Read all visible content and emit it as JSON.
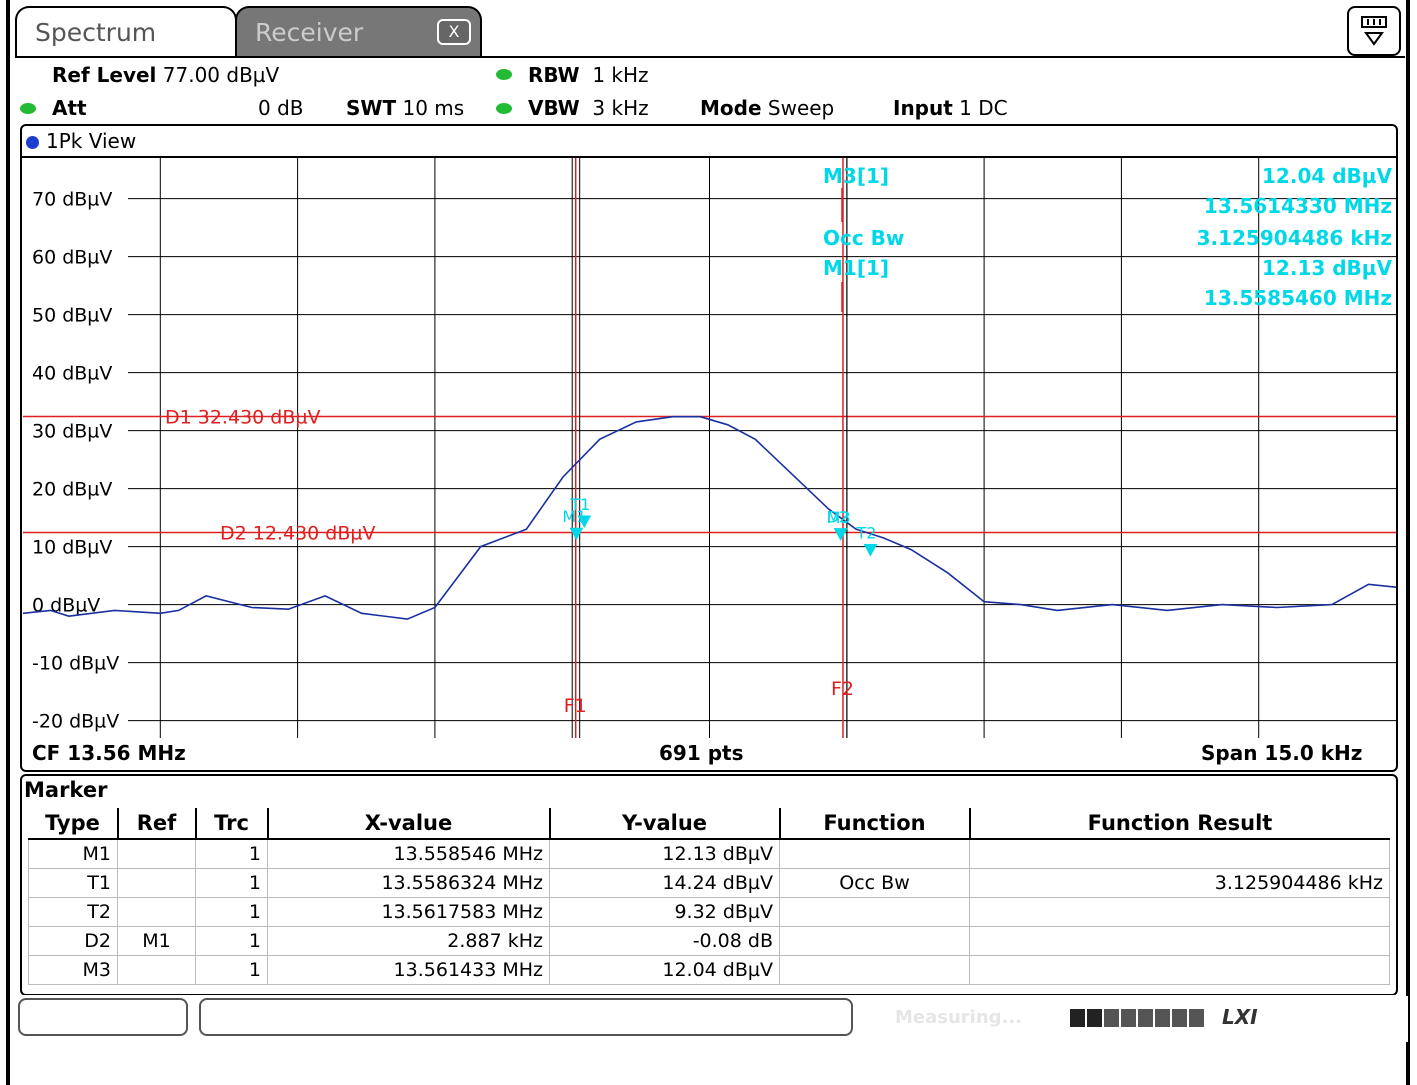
{
  "tabs": [
    {
      "label": "Spectrum",
      "active": true
    },
    {
      "label": "Receiver",
      "active": false
    }
  ],
  "tab_close_label": "X",
  "header": {
    "ref_level_label": "Ref Level",
    "ref_level_value": "77.00 dBµV",
    "att_label": "Att",
    "att_value": "0 dB",
    "swt_label": "SWT",
    "swt_value": "10 ms",
    "rbw_label": "RBW",
    "rbw_value": "1 kHz",
    "vbw_label": "VBW",
    "vbw_value": "3 kHz",
    "mode_label": "Mode",
    "mode_value": "Sweep",
    "input_label": "Input",
    "input_value": "1 DC"
  },
  "view_title": "1Pk View",
  "chart_data": {
    "type": "line",
    "y_unit": "dBµV",
    "ylim": [
      -23,
      77
    ],
    "y_ticks": [
      70,
      60,
      50,
      40,
      30,
      20,
      10,
      0,
      -10,
      -20
    ],
    "y_tick_labels": [
      "70 dBµV",
      "60 dBµV",
      "50 dBµV",
      "40 dBµV",
      "30 dBµV",
      "20 dBµV",
      "10 dBµV",
      "0 dBµV",
      "-10 dBµV",
      "-20 dBµV"
    ],
    "xlim_khz": [
      -7.5,
      7.5
    ],
    "center_label": "CF 13.56 MHz",
    "points_label": "691 pts",
    "span_label": "Span 15.0 kHz",
    "grid": true,
    "series": [
      {
        "x_khz": [
          -7.5,
          -7.2,
          -7.0,
          -6.5,
          -6.0,
          -5.8,
          -5.5,
          -5.0,
          -4.6,
          -4.2,
          -3.8,
          -3.3,
          -3.0,
          -2.5,
          -2.0,
          -1.6,
          -1.2,
          -0.8,
          -0.4,
          -0.1,
          0.2,
          0.5,
          0.9,
          1.3,
          1.6,
          1.9,
          2.2,
          2.6,
          3.0,
          3.4,
          3.8,
          4.4,
          5.0,
          5.6,
          6.2,
          6.8,
          7.2,
          7.5
        ],
        "y": [
          -1.5,
          -1.0,
          -2.0,
          -1.0,
          -1.5,
          -1.0,
          1.5,
          -0.5,
          -0.8,
          1.5,
          -1.5,
          -2.5,
          -0.5,
          10.0,
          13.0,
          22.0,
          28.5,
          31.5,
          32.4,
          32.4,
          31.0,
          28.5,
          22.5,
          16.5,
          13.0,
          11.5,
          9.5,
          5.5,
          0.5,
          0.0,
          -1.0,
          0.0,
          -1.0,
          0.0,
          -0.5,
          0.0,
          3.5,
          3.0
        ]
      }
    ],
    "lines": [
      {
        "label": "D1  32.430 dBµV",
        "y": 32.43
      },
      {
        "label": "D2  12.430 dBµV",
        "y": 12.43
      }
    ],
    "freq_lines": [
      {
        "label": "F1",
        "x_khz": -1.44
      },
      {
        "label": "F2",
        "x_khz": 1.48
      }
    ],
    "markers": [
      {
        "name": "M1",
        "x_khz": -1.454,
        "y": 12.13
      },
      {
        "name": "T1",
        "x_khz": -1.3676,
        "y": 14.24
      },
      {
        "name": "T2",
        "x_khz": 1.7583,
        "y": 9.32
      },
      {
        "name": "D2",
        "x_khz": 1.433,
        "y": 12.05
      },
      {
        "name": "M3",
        "x_khz": 1.433,
        "y": 12.04
      }
    ],
    "readout": [
      {
        "label": "M3[1]",
        "lines": [
          "12.04 dBµV",
          "13.5614330 MHz"
        ]
      },
      {
        "label": "Occ Bw",
        "lines": [
          "3.125904486 kHz"
        ]
      },
      {
        "label": "M1[1]",
        "lines": [
          "12.13 dBµV",
          "13.5585460 MHz"
        ]
      }
    ]
  },
  "marker_table": {
    "title": "Marker",
    "columns": [
      "Type",
      "Ref",
      "Trc",
      "X-value",
      "Y-value",
      "Function",
      "Function Result"
    ],
    "rows": [
      {
        "type": "M1",
        "ref": "",
        "trc": "1",
        "x": "13.558546 MHz",
        "y": "12.13 dBµV",
        "func": "",
        "result": ""
      },
      {
        "type": "T1",
        "ref": "",
        "trc": "1",
        "x": "13.5586324 MHz",
        "y": "14.24 dBµV",
        "func": "Occ Bw",
        "result": "3.125904486 kHz"
      },
      {
        "type": "T2",
        "ref": "",
        "trc": "1",
        "x": "13.5617583 MHz",
        "y": "9.32 dBµV",
        "func": "",
        "result": ""
      },
      {
        "type": "D2",
        "ref": "M1",
        "trc": "1",
        "x": "2.887 kHz",
        "y": "-0.08 dB",
        "func": "",
        "result": ""
      },
      {
        "type": "M3",
        "ref": "",
        "trc": "1",
        "x": "13.561433 MHz",
        "y": "12.04 dBµV",
        "func": "",
        "result": ""
      }
    ]
  },
  "status": {
    "measuring": "Measuring...",
    "progress": 0.2,
    "logo": "LXI"
  },
  "colors": {
    "trace": "#1a2fa0",
    "limit_line": "#e02020",
    "marker": "#00d8e8",
    "grid": "#000000"
  }
}
